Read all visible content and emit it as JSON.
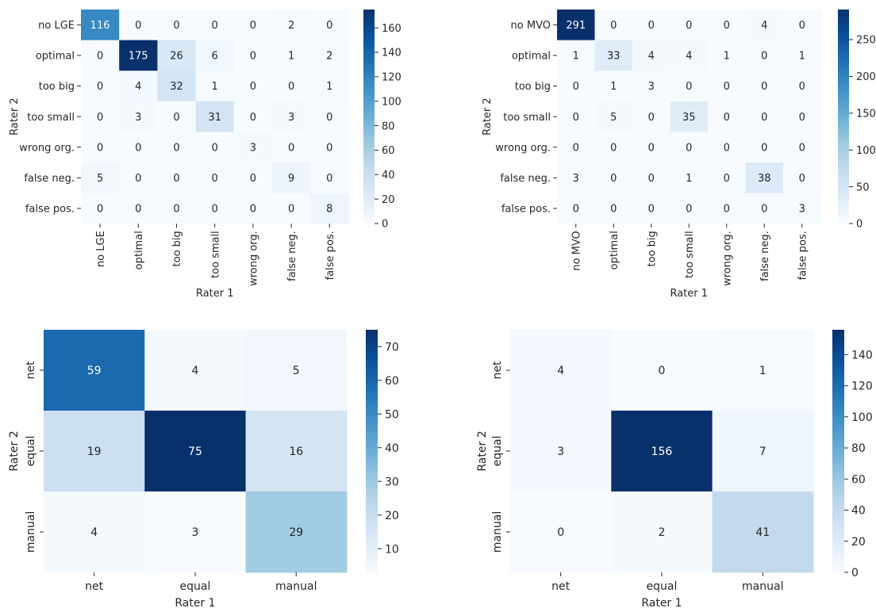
{
  "chart_data": [
    {
      "type": "heatmap",
      "xlabel": "Rater 1",
      "ylabel": "Rater 2",
      "x_categories": [
        "no LGE",
        "optimal",
        "too big",
        "too small",
        "wrong org.",
        "false neg.",
        "false pos."
      ],
      "y_categories": [
        "no LGE",
        "optimal",
        "too big",
        "too small",
        "wrong org.",
        "false neg.",
        "false pos."
      ],
      "values": [
        [
          116,
          0,
          0,
          0,
          0,
          2,
          0
        ],
        [
          0,
          175,
          26,
          6,
          0,
          1,
          2
        ],
        [
          0,
          4,
          32,
          1,
          0,
          0,
          1
        ],
        [
          0,
          3,
          0,
          31,
          0,
          3,
          0
        ],
        [
          0,
          0,
          0,
          0,
          3,
          0,
          0
        ],
        [
          5,
          0,
          0,
          0,
          0,
          9,
          0
        ],
        [
          0,
          0,
          0,
          0,
          0,
          0,
          8
        ]
      ],
      "colorbar": {
        "min": 0,
        "max": 175,
        "ticks": [
          0,
          20,
          40,
          60,
          80,
          100,
          120,
          140,
          160
        ]
      },
      "colormap": "Blues"
    },
    {
      "type": "heatmap",
      "xlabel": "Rater 1",
      "ylabel": "Rater 2",
      "x_categories": [
        "no MVO",
        "optimal",
        "too big",
        "too small",
        "wrong org.",
        "false neg.",
        "false pos."
      ],
      "y_categories": [
        "no MVO",
        "optimal",
        "too big",
        "too small",
        "wrong org.",
        "false neg.",
        "false pos."
      ],
      "values": [
        [
          291,
          0,
          0,
          0,
          0,
          4,
          0
        ],
        [
          1,
          33,
          4,
          4,
          1,
          0,
          1
        ],
        [
          0,
          1,
          3,
          0,
          0,
          0,
          0
        ],
        [
          0,
          5,
          0,
          35,
          0,
          0,
          0
        ],
        [
          0,
          0,
          0,
          0,
          0,
          0,
          0
        ],
        [
          3,
          0,
          0,
          1,
          0,
          38,
          0
        ],
        [
          0,
          0,
          0,
          0,
          0,
          0,
          3
        ]
      ],
      "colorbar": {
        "min": 0,
        "max": 291,
        "ticks": [
          0,
          50,
          100,
          150,
          200,
          250
        ]
      },
      "colormap": "Blues"
    },
    {
      "type": "heatmap",
      "xlabel": "Rater 1",
      "ylabel": "Rater 2",
      "x_categories": [
        "net",
        "equal",
        "manual"
      ],
      "y_categories": [
        "net",
        "equal",
        "manual"
      ],
      "values": [
        [
          59,
          4,
          5
        ],
        [
          19,
          75,
          16
        ],
        [
          4,
          3,
          29
        ]
      ],
      "colorbar": {
        "min": 3,
        "max": 75,
        "ticks": [
          10,
          20,
          30,
          40,
          50,
          60,
          70
        ]
      },
      "colormap": "Blues"
    },
    {
      "type": "heatmap",
      "xlabel": "Rater 1",
      "ylabel": "Rater 2",
      "x_categories": [
        "net",
        "equal",
        "manual"
      ],
      "y_categories": [
        "net",
        "equal",
        "manual"
      ],
      "values": [
        [
          4,
          0,
          1
        ],
        [
          3,
          156,
          7
        ],
        [
          0,
          2,
          41
        ]
      ],
      "colorbar": {
        "min": 0,
        "max": 156,
        "ticks": [
          0,
          20,
          40,
          60,
          80,
          100,
          120,
          140
        ]
      },
      "colormap": "Blues"
    }
  ]
}
